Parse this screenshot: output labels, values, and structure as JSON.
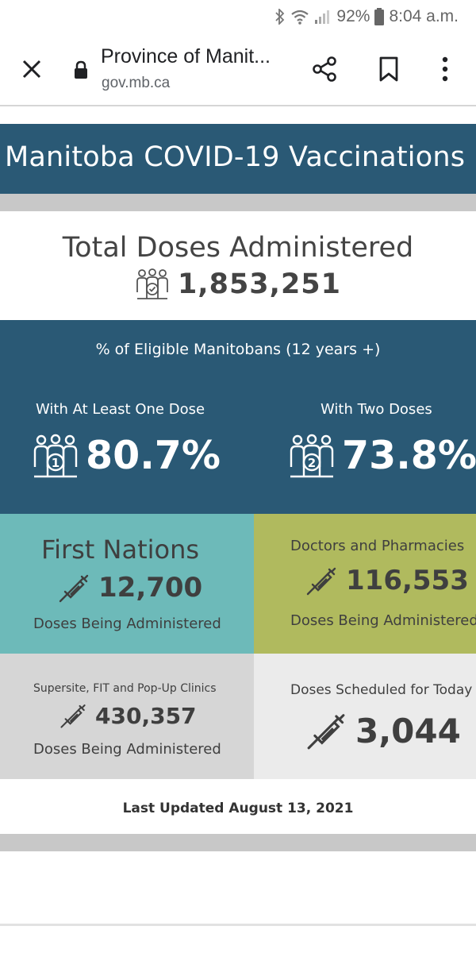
{
  "status_bar": {
    "battery": "92%",
    "time": "8:04 a.m."
  },
  "browser": {
    "title": "Province of Manit...",
    "url": "gov.mb.ca"
  },
  "banner": {
    "title": "Manitoba COVID-19 Vaccinations"
  },
  "total": {
    "label": "Total Doses Administered",
    "value": "1,853,251"
  },
  "eligible": {
    "title": "% of Eligible Manitobans (12 years +)",
    "one_dose": {
      "label": "With At Least One Dose",
      "value": "80.7%",
      "badge": "1"
    },
    "two_doses": {
      "label": "With Two Doses",
      "value": "73.8%",
      "badge": "2"
    }
  },
  "tiles": {
    "first_nations": {
      "title": "First Nations",
      "value": "12,700",
      "sub": "Doses Being Administered"
    },
    "doctors": {
      "title": "Doctors and Pharmacies",
      "value": "116,553",
      "sub": "Doses Being Administered"
    },
    "supersite": {
      "title": "Supersite, FIT and Pop-Up Clinics",
      "value": "430,357",
      "sub": "Doses Being Administered"
    },
    "scheduled": {
      "title": "Doses Scheduled for Today",
      "value": "3,044"
    }
  },
  "updated": "Last Updated August 13, 2021",
  "colors": {
    "banner": "#2a5975",
    "first_nations": "#6dbab9",
    "doctors": "#b0ba5e",
    "supersite": "#d6d6d6",
    "scheduled": "#ebebeb"
  }
}
